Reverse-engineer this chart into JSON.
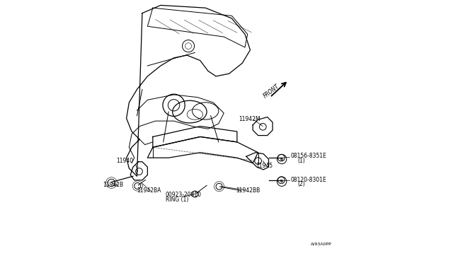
{
  "title": "",
  "background_color": "#ffffff",
  "line_color": "#000000",
  "label_color": "#000000",
  "fig_width": 6.4,
  "fig_height": 3.72,
  "dpi": 100,
  "circle_b_symbols": [
    [
      0.71,
      0.395
    ],
    [
      0.71,
      0.31
    ]
  ]
}
